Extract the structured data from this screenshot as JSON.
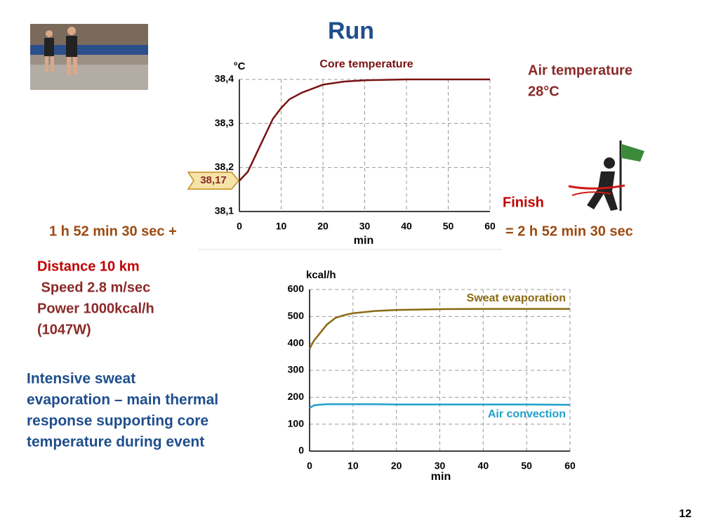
{
  "title": "Run",
  "air_temperature": [
    "Air temperature",
    "28°C"
  ],
  "finish": "Finish",
  "start_time": "1 h 52 min 30 sec +",
  "end_time": "= 2 h 52 min 30 sec",
  "info": [
    "Distance 10 km",
    " Speed 2.8 m/sec",
    "Power 1000kcal/h",
    "(1047W)"
  ],
  "note": [
    "Intensive sweat",
    "evaporation – main thermal",
    "response supporting core",
    "temperature during event"
  ],
  "page_number": "12",
  "chart_data": [
    {
      "type": "line",
      "y_unit": "°C",
      "x_label": "min",
      "x": [
        0,
        2,
        4,
        6,
        8,
        10,
        12,
        15,
        20,
        25,
        30,
        40,
        50,
        60
      ],
      "series": [
        {
          "name": "Core  temperature",
          "color": "#7a1212",
          "values": [
            38.17,
            38.19,
            38.23,
            38.27,
            38.31,
            38.335,
            38.355,
            38.37,
            38.388,
            38.395,
            38.398,
            38.4,
            38.4,
            38.4
          ]
        }
      ],
      "annotation": {
        "value": 38.17,
        "label": "38,17"
      },
      "xlim": [
        0,
        60
      ],
      "xticks": [
        0,
        10,
        20,
        30,
        40,
        50,
        60
      ],
      "ylim": [
        38.1,
        38.4
      ],
      "yticks": [
        {
          "value": 38.1,
          "label": "38,1"
        },
        {
          "value": 38.2,
          "label": "38,2"
        },
        {
          "value": 38.3,
          "label": "38,3"
        },
        {
          "value": 38.4,
          "label": "38,4"
        }
      ],
      "grid": true
    },
    {
      "type": "line",
      "y_unit": "kcal/h",
      "x_label": "min",
      "x": [
        0,
        1,
        2,
        4,
        6,
        8,
        10,
        15,
        20,
        30,
        40,
        50,
        60
      ],
      "series": [
        {
          "name": "Sweat evaporation",
          "color": "#8a6a12",
          "values": [
            380,
            410,
            430,
            470,
            495,
            505,
            512,
            520,
            524,
            527,
            528,
            528,
            528
          ]
        },
        {
          "name": "Air convection",
          "color": "#1ea0c8",
          "values": [
            160,
            170,
            172,
            174,
            174,
            174,
            174,
            174,
            173,
            173,
            173,
            173,
            172
          ]
        }
      ],
      "xlim": [
        0,
        60
      ],
      "xticks": [
        0,
        10,
        20,
        30,
        40,
        50,
        60
      ],
      "ylim": [
        0,
        600
      ],
      "yticks": [
        0,
        100,
        200,
        300,
        400,
        500,
        600
      ],
      "grid": true
    }
  ]
}
